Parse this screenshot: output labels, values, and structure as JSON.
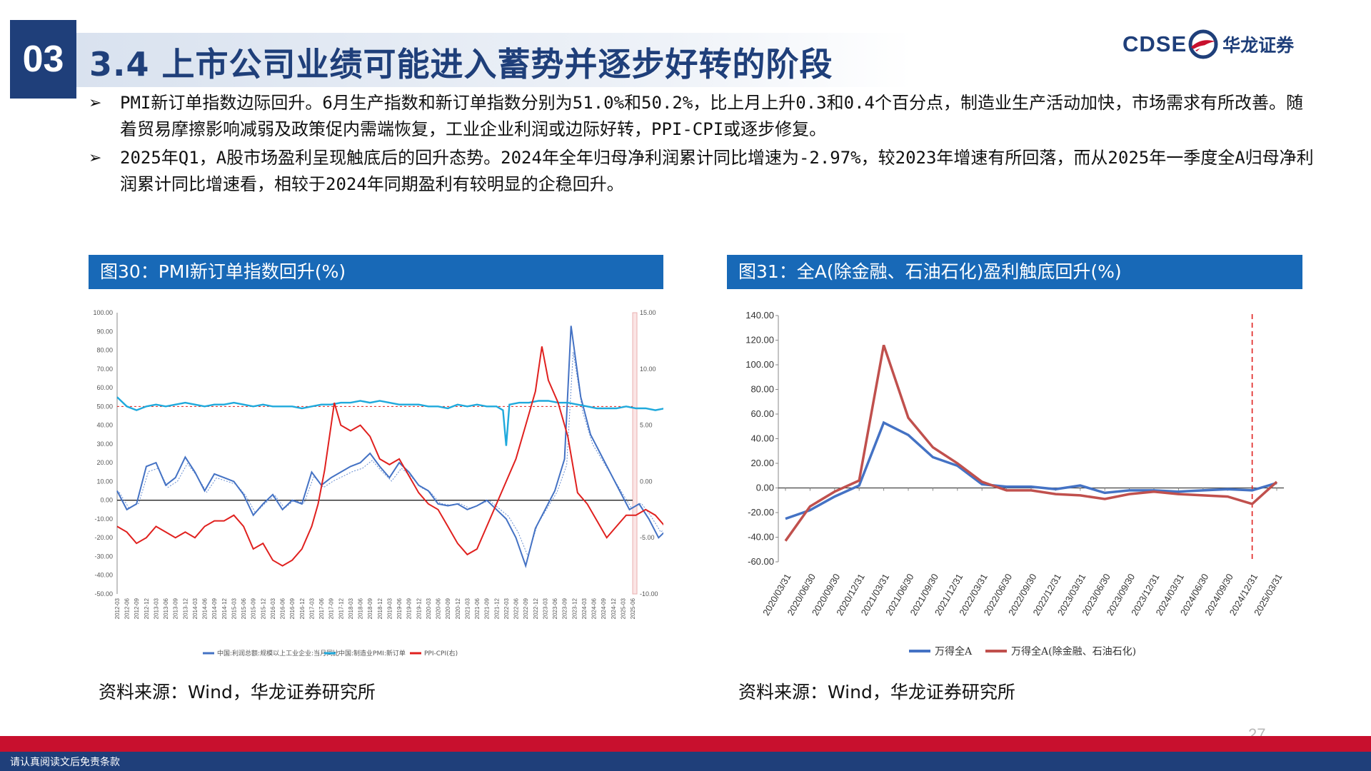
{
  "header": {
    "section": "03",
    "title": "3.4 上市公司业绩可能进入蓄势并逐步好转的阶段",
    "logo_text": "CDSE",
    "logo_name": "华龙证券",
    "brand_color": "#1f3f7a"
  },
  "bullets": [
    {
      "icon": "arrow-bullet-icon",
      "text": "PMI新订单指数边际回升。6月生产指数和新订单指数分别为51.0%和50.2%，比上月上升0.3和0.4个百分点，制造业生产活动加快，市场需求有所改善。随着贸易摩擦影响减弱及政策促内需端恢复，工业企业利润或边际好转，PPI-CPI或逐步修复。"
    },
    {
      "icon": "arrow-bullet-icon",
      "text": "2025年Q1，A股市场盈利呈现触底后的回升态势。2024年全年归母净利润累计同比增速为-2.97%，较2023年增速有所回落，而从2025年一季度全A归母净利润累计同比增速看，相较于2024年同期盈利有较明显的企稳回升。"
    }
  ],
  "figures": [
    {
      "title": "图30：PMI新订单指数回升(%)",
      "source": "资料来源：Wind，华龙证券研究所"
    },
    {
      "title": "图31：全A(除金融、石油石化)盈利触底回升(%)",
      "source": "资料来源：Wind，华龙证券研究所"
    }
  ],
  "chart_data": [
    {
      "type": "line",
      "y_left_ticks": [
        "100.00",
        "90.00",
        "80.00",
        "70.00",
        "60.00",
        "50.00",
        "40.00",
        "30.00",
        "20.00",
        "10.00",
        "0.00",
        "-10.00",
        "-20.00",
        "-30.00",
        "-40.00",
        "-50.00"
      ],
      "y_right_ticks": [
        "15.00",
        "10.00",
        "5.00",
        "0.00",
        "-5.00",
        "-10.00"
      ],
      "ylim_left": [
        -50,
        100
      ],
      "ylim_right": [
        -10,
        15
      ],
      "x_start": [
        2012,
        3
      ],
      "x_end": [
        2025,
        6
      ],
      "x_labels": [
        "2012-03",
        "2012-06",
        "2012-09",
        "2012-12",
        "2013-03",
        "2013-06",
        "2013-09",
        "2013-12",
        "2014-03",
        "2014-06",
        "2014-09",
        "2014-12",
        "2015-03",
        "2015-06",
        "2015-09",
        "2015-12",
        "2016-03",
        "2016-06",
        "2016-09",
        "2016-12",
        "2017-03",
        "2017-06",
        "2017-09",
        "2017-12",
        "2018-03",
        "2018-06",
        "2018-09",
        "2018-12",
        "2019-03",
        "2019-06",
        "2019-09",
        "2019-12",
        "2020-03",
        "2020-06",
        "2020-09",
        "2020-12",
        "2021-03",
        "2021-06",
        "2021-09",
        "2021-12",
        "2022-03",
        "2022-06",
        "2022-09",
        "2022-12",
        "2023-03",
        "2023-06",
        "2023-09",
        "2023-12",
        "2024-03",
        "2024-06",
        "2024-09",
        "2024-12",
        "2025-03",
        "2025-06"
      ],
      "series": [
        {
          "name": "中国:利润总额:规模以上工业企业:当月同比",
          "color": "#4472c4",
          "axis": "left",
          "points": [
            [
              0,
              5
            ],
            [
              3,
              -5
            ],
            [
              6,
              -2
            ],
            [
              9,
              18
            ],
            [
              12,
              20
            ],
            [
              15,
              8
            ],
            [
              18,
              12
            ],
            [
              21,
              23
            ],
            [
              24,
              15
            ],
            [
              27,
              5
            ],
            [
              30,
              14
            ],
            [
              33,
              12
            ],
            [
              36,
              10
            ],
            [
              39,
              3
            ],
            [
              42,
              -8
            ],
            [
              45,
              -2
            ],
            [
              48,
              3
            ],
            [
              51,
              -5
            ],
            [
              54,
              0
            ],
            [
              57,
              -2
            ],
            [
              60,
              15
            ],
            [
              63,
              8
            ],
            [
              66,
              12
            ],
            [
              69,
              15
            ],
            [
              72,
              18
            ],
            [
              75,
              20
            ],
            [
              78,
              25
            ],
            [
              81,
              18
            ],
            [
              84,
              12
            ],
            [
              87,
              20
            ],
            [
              90,
              15
            ],
            [
              93,
              8
            ],
            [
              96,
              5
            ],
            [
              99,
              -2
            ],
            [
              102,
              -3
            ],
            [
              105,
              -2
            ],
            [
              108,
              -5
            ],
            [
              111,
              -3
            ],
            [
              114,
              0
            ],
            [
              117,
              -5
            ],
            [
              120,
              -10
            ],
            [
              123,
              -20
            ],
            [
              126,
              -35
            ],
            [
              129,
              -15
            ],
            [
              132,
              -5
            ],
            [
              135,
              5
            ],
            [
              138,
              22
            ],
            [
              140,
              93
            ],
            [
              143,
              55
            ],
            [
              146,
              35
            ],
            [
              149,
              25
            ],
            [
              152,
              15
            ],
            [
              155,
              5
            ],
            [
              158,
              -5
            ],
            [
              161,
              -2
            ],
            [
              164,
              -10
            ],
            [
              167,
              -20
            ],
            [
              170,
              -15
            ],
            [
              173,
              -5
            ],
            [
              176,
              15
            ],
            [
              178,
              30
            ],
            [
              181,
              10
            ],
            [
              184,
              5
            ],
            [
              187,
              -2
            ],
            [
              190,
              -20
            ],
            [
              191,
              -27
            ],
            [
              193,
              0
            ],
            [
              195,
              5
            ],
            [
              197,
              -5
            ],
            [
              199,
              -8
            ]
          ]
        },
        {
          "name": "中国:制造业PMI:新订单",
          "color": "#1fa9dc",
          "axis": "left",
          "points": [
            [
              0,
              55
            ],
            [
              3,
              50
            ],
            [
              6,
              48
            ],
            [
              9,
              50
            ],
            [
              12,
              51
            ],
            [
              15,
              50
            ],
            [
              18,
              51
            ],
            [
              21,
              52
            ],
            [
              24,
              51
            ],
            [
              27,
              50
            ],
            [
              30,
              51
            ],
            [
              33,
              51
            ],
            [
              36,
              52
            ],
            [
              39,
              51
            ],
            [
              42,
              50
            ],
            [
              45,
              51
            ],
            [
              48,
              50
            ],
            [
              51,
              50
            ],
            [
              54,
              50
            ],
            [
              57,
              49
            ],
            [
              60,
              50
            ],
            [
              63,
              51
            ],
            [
              66,
              51
            ],
            [
              69,
              52
            ],
            [
              72,
              52
            ],
            [
              75,
              53
            ],
            [
              78,
              52
            ],
            [
              81,
              53
            ],
            [
              84,
              52
            ],
            [
              87,
              51
            ],
            [
              90,
              51
            ],
            [
              93,
              51
            ],
            [
              96,
              50
            ],
            [
              99,
              50
            ],
            [
              102,
              49
            ],
            [
              105,
              51
            ],
            [
              108,
              50
            ],
            [
              111,
              51
            ],
            [
              114,
              50
            ],
            [
              117,
              50
            ],
            [
              119,
              48
            ],
            [
              120,
              29
            ],
            [
              121,
              51
            ],
            [
              124,
              52
            ],
            [
              127,
              52
            ],
            [
              130,
              53
            ],
            [
              133,
              53
            ],
            [
              136,
              52
            ],
            [
              139,
              52
            ],
            [
              142,
              51
            ],
            [
              145,
              50
            ],
            [
              148,
              49
            ],
            [
              151,
              49
            ],
            [
              154,
              49
            ],
            [
              157,
              50
            ],
            [
              160,
              49
            ],
            [
              163,
              49
            ],
            [
              166,
              48
            ],
            [
              169,
              49
            ],
            [
              172,
              49
            ],
            [
              175,
              50
            ],
            [
              178,
              49
            ],
            [
              181,
              49
            ],
            [
              184,
              49
            ],
            [
              187,
              50
            ],
            [
              190,
              50
            ],
            [
              193,
              51
            ],
            [
              196,
              50
            ],
            [
              199,
              50
            ]
          ]
        },
        {
          "name": "PPI-CPI(右)",
          "color": "#e0201e",
          "axis": "right",
          "points": [
            [
              0,
              -4
            ],
            [
              3,
              -4.5
            ],
            [
              6,
              -5.5
            ],
            [
              9,
              -5
            ],
            [
              12,
              -4
            ],
            [
              15,
              -4.5
            ],
            [
              18,
              -5
            ],
            [
              21,
              -4.5
            ],
            [
              24,
              -5
            ],
            [
              27,
              -4
            ],
            [
              30,
              -3.5
            ],
            [
              33,
              -3.5
            ],
            [
              36,
              -3
            ],
            [
              39,
              -4
            ],
            [
              42,
              -6
            ],
            [
              45,
              -5.5
            ],
            [
              48,
              -7
            ],
            [
              51,
              -7.5
            ],
            [
              54,
              -7
            ],
            [
              57,
              -6
            ],
            [
              60,
              -4
            ],
            [
              62,
              -2
            ],
            [
              64,
              1
            ],
            [
              66,
              5
            ],
            [
              67,
              7
            ],
            [
              69,
              5
            ],
            [
              72,
              4.5
            ],
            [
              75,
              5
            ],
            [
              78,
              4
            ],
            [
              81,
              2
            ],
            [
              84,
              1.5
            ],
            [
              87,
              2
            ],
            [
              90,
              0.5
            ],
            [
              93,
              -1
            ],
            [
              96,
              -2
            ],
            [
              99,
              -2.5
            ],
            [
              102,
              -4
            ],
            [
              105,
              -5.5
            ],
            [
              108,
              -6.5
            ],
            [
              111,
              -6
            ],
            [
              114,
              -4
            ],
            [
              117,
              -2
            ],
            [
              120,
              0
            ],
            [
              123,
              2
            ],
            [
              126,
              5
            ],
            [
              129,
              8
            ],
            [
              131,
              12
            ],
            [
              133,
              9
            ],
            [
              136,
              7
            ],
            [
              139,
              4
            ],
            [
              142,
              -1
            ],
            [
              145,
              -2
            ],
            [
              148,
              -3.5
            ],
            [
              151,
              -5
            ],
            [
              154,
              -4
            ],
            [
              157,
              -3
            ],
            [
              160,
              -3
            ],
            [
              163,
              -2.5
            ],
            [
              166,
              -3
            ],
            [
              169,
              -4
            ],
            [
              172,
              -3
            ],
            [
              175,
              -3
            ],
            [
              178,
              -2.5
            ],
            [
              181,
              -3
            ],
            [
              184,
              -3.5
            ],
            [
              187,
              -3
            ],
            [
              190,
              -3
            ],
            [
              193,
              -2.5
            ],
            [
              196,
              -3
            ],
            [
              199,
              -3.2
            ]
          ]
        }
      ]
    },
    {
      "type": "line",
      "categories": [
        "2020/03/31",
        "2020/06/30",
        "2020/09/30",
        "2020/12/31",
        "2021/03/31",
        "2021/06/30",
        "2021/09/30",
        "2021/12/31",
        "2022/03/31",
        "2022/06/30",
        "2022/09/30",
        "2022/12/31",
        "2023/03/31",
        "2023/06/30",
        "2023/09/30",
        "2023/12/31",
        "2024/03/31",
        "2024/06/30",
        "2024/09/30",
        "2024/12/31",
        "2025/03/31"
      ],
      "y_ticks": [
        "140.00",
        "120.00",
        "100.00",
        "80.00",
        "60.00",
        "40.00",
        "20.00",
        "0.00",
        "-20.00",
        "-40.00",
        "-60.00"
      ],
      "ylim": [
        -60,
        140
      ],
      "vline_category": "2024/12/31",
      "series": [
        {
          "name": "万得全A",
          "color": "#4472c4",
          "values": [
            -25,
            -18,
            -7,
            2,
            53,
            43,
            25,
            18,
            3,
            1,
            1,
            -1,
            2,
            -4,
            -2,
            -2,
            -3,
            -2,
            -1,
            -2,
            4
          ]
        },
        {
          "name": "万得全A(除金融、石油石化)",
          "color": "#c0504d",
          "values": [
            -43,
            -15,
            -3,
            6,
            116,
            57,
            33,
            20,
            5,
            -2,
            -2,
            -5,
            -6,
            -9,
            -5,
            -3,
            -5,
            -6,
            -7,
            -13,
            5
          ]
        }
      ]
    }
  ],
  "footer": {
    "disclaimer": "请认真阅读文后免责条款",
    "page": "27"
  }
}
